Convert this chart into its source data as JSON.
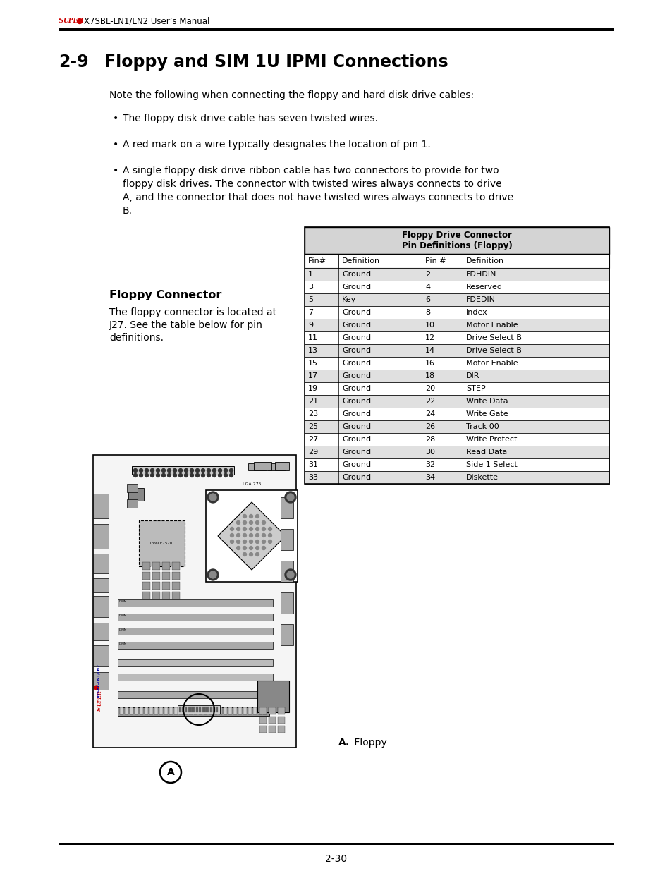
{
  "page_title_super": "Super",
  "page_title_rest": "● X7SBL-LN1/LN2 User’s Manual",
  "section_num": "2-9",
  "section_title": "Floppy and SIM 1U IPMI Connections",
  "intro_text": "Note the following when connecting the floppy and hard disk drive cables:",
  "bullet1": "The floppy disk drive cable has seven twisted wires.",
  "bullet2": "A red mark on a wire typically designates the location of pin 1.",
  "bullet3_lines": [
    "A single floppy disk drive ribbon cable has two connectors to provide for two",
    "floppy disk drives. The connector with twisted wires always connects to drive",
    "A, and the connector that does not have twisted wires always connects to drive",
    "B."
  ],
  "floppy_connector_title": "Floppy Connector",
  "floppy_connector_lines": [
    "The floppy connector is located at",
    "J27. See the table below for pin",
    "definitions."
  ],
  "table_title_line1": "Floppy Drive Connector",
  "table_title_line2": "Pin Definitions (Floppy)",
  "table_header": [
    "Pin#",
    "Definition",
    "Pin #",
    "Definition"
  ],
  "table_rows": [
    [
      "1",
      "Ground",
      "2",
      "FDHDIN"
    ],
    [
      "3",
      "Ground",
      "4",
      "Reserved"
    ],
    [
      "5",
      "Key",
      "6",
      "FDEDIN"
    ],
    [
      "7",
      "Ground",
      "8",
      "Index"
    ],
    [
      "9",
      "Ground",
      "10",
      "Motor Enable"
    ],
    [
      "11",
      "Ground",
      "12",
      "Drive Select B"
    ],
    [
      "13",
      "Ground",
      "14",
      "Drive Select B"
    ],
    [
      "15",
      "Ground",
      "16",
      "Motor Enable"
    ],
    [
      "17",
      "Ground",
      "18",
      "DIR"
    ],
    [
      "19",
      "Ground",
      "20",
      "STEP"
    ],
    [
      "21",
      "Ground",
      "22",
      "Write Data"
    ],
    [
      "23",
      "Ground",
      "24",
      "Write Gate"
    ],
    [
      "25",
      "Ground",
      "26",
      "Track 00"
    ],
    [
      "27",
      "Ground",
      "28",
      "Write Protect"
    ],
    [
      "29",
      "Ground",
      "30",
      "Read Data"
    ],
    [
      "31",
      "Ground",
      "32",
      "Side 1 Select"
    ],
    [
      "33",
      "Ground",
      "34",
      "Diskette"
    ]
  ],
  "figure_label_bold": "A.",
  "figure_label_normal": " Floppy",
  "page_number": "2-30",
  "bg_color": "#ffffff",
  "super_color": "#cc0000",
  "table_title_bg": "#d4d4d4",
  "table_alt_bg": "#e0e0e0",
  "table_white_bg": "#ffffff"
}
